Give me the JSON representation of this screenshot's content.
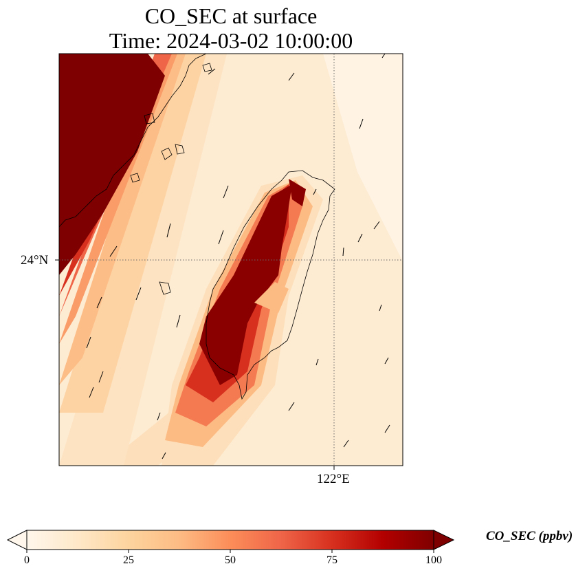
{
  "title_line1": "CO_SEC at surface",
  "title_line2": "Time: 2024-03-02 10:00:00",
  "latitude_label": "24°N",
  "longitude_label": "122°E",
  "colorbar": {
    "label": "CO_SEC (ppbv)",
    "ticks": [
      "0",
      "25",
      "50",
      "75",
      "100"
    ],
    "min": 0,
    "max": 100,
    "colormap": "OrRd",
    "extend": "both",
    "colors": [
      "#fff7ec",
      "#fee8c8",
      "#fdd49e",
      "#fdbb84",
      "#fc8d59",
      "#ef6548",
      "#d7301f",
      "#b30000",
      "#7f0000"
    ]
  },
  "map": {
    "region": "Taiwan and Taiwan Strait",
    "field": "CO_SEC",
    "field_units": "ppbv",
    "wind_vectors": true,
    "coastlines": true
  }
}
